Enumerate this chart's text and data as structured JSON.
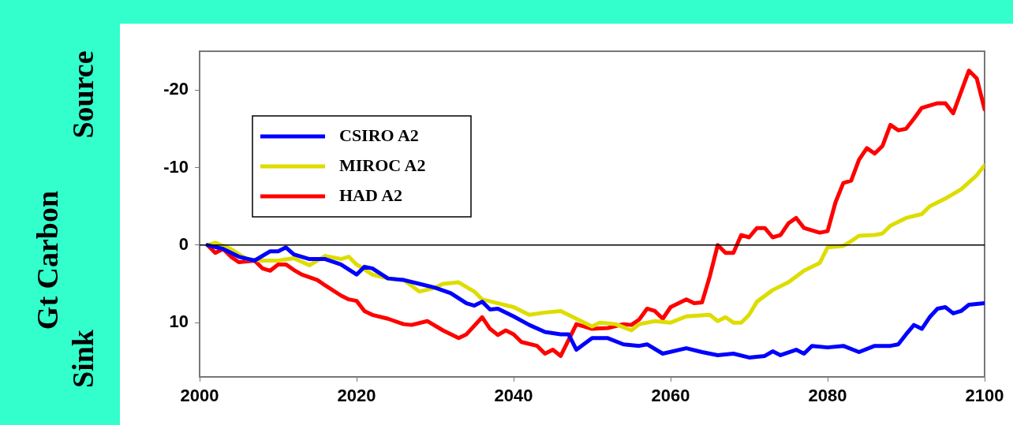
{
  "chart_data": {
    "type": "line",
    "ylabel": "Gt Carbon",
    "annotations": [
      "Source",
      "Sink"
    ],
    "xlim": [
      2000,
      2100
    ],
    "xticks": [
      2000,
      2020,
      2040,
      2060,
      2080,
      2100
    ],
    "ylim": [
      17,
      -25
    ],
    "yticks": [
      -20,
      -10,
      0,
      10
    ],
    "grid": false,
    "legend": "top left",
    "marker": "none",
    "line_style": "solid",
    "ref_lines": [
      {
        "axis": "y",
        "value": 0,
        "color": "#000000"
      }
    ],
    "series": [
      {
        "name": "CSIRO A2",
        "color": "#0000ff",
        "x": [
          2001,
          2003,
          2005,
          2007,
          2009,
          2010,
          2011,
          2012,
          2014,
          2016,
          2018,
          2020,
          2021,
          2022,
          2024,
          2026,
          2028,
          2030,
          2032,
          2034,
          2035,
          2036,
          2037,
          2038,
          2040,
          2042,
          2044,
          2046,
          2047,
          2048,
          2050,
          2052,
          2054,
          2056,
          2057,
          2059,
          2062,
          2064,
          2066,
          2068,
          2070,
          2072,
          2073,
          2074,
          2076,
          2077,
          2078,
          2080,
          2082,
          2084,
          2086,
          2088,
          2089,
          2090,
          2091,
          2092,
          2093,
          2094,
          2095,
          2096,
          2097,
          2098,
          2100
        ],
        "values": [
          0,
          0.5,
          1.5,
          2,
          0.8,
          0.8,
          0.3,
          1.2,
          1.8,
          1.8,
          2.5,
          3.8,
          2.8,
          3,
          4.3,
          4.5,
          5,
          5.5,
          6.2,
          7.5,
          7.8,
          7.3,
          8.3,
          8.2,
          9.2,
          10.3,
          11.2,
          11.5,
          11.5,
          13.5,
          12,
          12,
          12.8,
          13,
          12.8,
          14,
          13.3,
          13.8,
          14.2,
          14,
          14.5,
          14.3,
          13.7,
          14.2,
          13.5,
          14,
          13,
          13.2,
          13,
          13.8,
          13,
          13,
          12.8,
          11.5,
          10.3,
          10.8,
          9.3,
          8.2,
          8,
          8.8,
          8.5,
          7.7,
          7.5
        ]
      },
      {
        "name": "MIROC A2",
        "color": "#dddd00",
        "x": [
          2001,
          2002,
          2004,
          2006,
          2008,
          2010,
          2012,
          2014,
          2016,
          2018,
          2019,
          2020,
          2022,
          2024,
          2026,
          2028,
          2030,
          2031,
          2033,
          2035,
          2036,
          2038,
          2040,
          2042,
          2044,
          2046,
          2048,
          2050,
          2051,
          2053,
          2055,
          2056,
          2058,
          2060,
          2062,
          2065,
          2066,
          2067,
          2068,
          2069,
          2070,
          2071,
          2073,
          2075,
          2077,
          2079,
          2080,
          2082,
          2083,
          2084,
          2086,
          2087,
          2088,
          2090,
          2092,
          2093,
          2095,
          2097,
          2099,
          2100
        ],
        "values": [
          0,
          -0.3,
          0.5,
          1.8,
          2,
          2,
          1.7,
          2.6,
          1.4,
          1.8,
          1.5,
          2.5,
          3.8,
          4.3,
          4.5,
          6,
          5.5,
          5,
          4.8,
          6,
          7,
          7.5,
          8,
          9,
          8.7,
          8.5,
          9.5,
          10.5,
          10,
          10.2,
          11,
          10.2,
          9.8,
          10,
          9.2,
          9,
          9.8,
          9.3,
          10,
          10,
          9,
          7.3,
          5.8,
          4.8,
          3.3,
          2.3,
          0.3,
          0.1,
          -0.5,
          -1.2,
          -1.3,
          -1.5,
          -2.5,
          -3.5,
          -4,
          -5,
          -6,
          -7.2,
          -9,
          -10.3
        ]
      },
      {
        "name": "HAD A2",
        "color": "#ff0000",
        "x": [
          2001,
          2002,
          2003,
          2004,
          2005,
          2007,
          2008,
          2009,
          2010,
          2011,
          2012,
          2013,
          2015,
          2016,
          2018,
          2019,
          2020,
          2021,
          2022,
          2024,
          2026,
          2027,
          2029,
          2031,
          2033,
          2034,
          2036,
          2037,
          2038,
          2039,
          2040,
          2041,
          2043,
          2044,
          2045,
          2046,
          2048,
          2050,
          2052,
          2054,
          2055,
          2056,
          2057,
          2058,
          2059,
          2060,
          2062,
          2063,
          2064,
          2065,
          2066,
          2067,
          2068,
          2069,
          2070,
          2071,
          2072,
          2073,
          2074,
          2075,
          2076,
          2077,
          2079,
          2080,
          2081,
          2082,
          2083,
          2084,
          2085,
          2086,
          2087,
          2088,
          2089,
          2090,
          2091,
          2092,
          2093,
          2094,
          2095,
          2096,
          2098,
          2099,
          2100
        ],
        "values": [
          0,
          1,
          0.5,
          1.5,
          2.2,
          2,
          3,
          3.3,
          2.5,
          2.5,
          3.2,
          3.8,
          4.5,
          5.2,
          6.5,
          7,
          7.2,
          8.5,
          9,
          9.5,
          10.2,
          10.3,
          9.8,
          11,
          12,
          11.5,
          9.3,
          10.8,
          11.6,
          11,
          11.5,
          12.5,
          13,
          14,
          13.5,
          14.3,
          10.2,
          10.8,
          10.7,
          10.2,
          10.3,
          9.6,
          8.2,
          8.5,
          9.5,
          8,
          7,
          7.5,
          7.4,
          4,
          0,
          1,
          1,
          -1.3,
          -1,
          -2.2,
          -2.2,
          -1,
          -1.3,
          -2.8,
          -3.5,
          -2.2,
          -1.6,
          -1.8,
          -5.5,
          -8,
          -8.3,
          -11,
          -12.5,
          -11.8,
          -12.8,
          -15.5,
          -14.8,
          -15,
          -16.3,
          -17.7,
          -18,
          -18.3,
          -18.3,
          -17,
          -22.5,
          -21.5,
          -17.5
        ]
      }
    ]
  }
}
